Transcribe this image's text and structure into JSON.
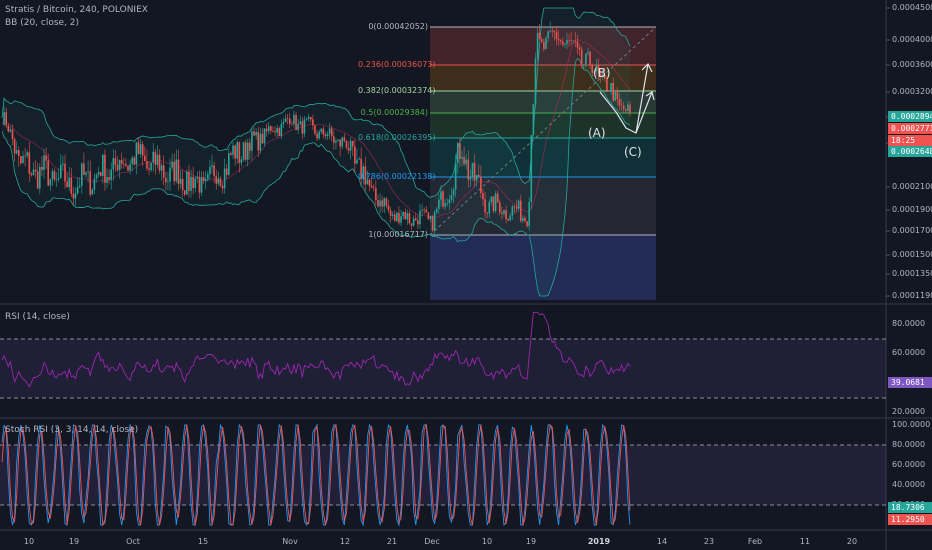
{
  "header": {
    "symbol": "Stratis / Bitcoin, 240, POLONIEX",
    "indicator": "BB (20, close, 2)"
  },
  "panes": {
    "rsi_label": "RSI (14, close)",
    "stoch_label": "Stoch RSI (3, 3, 14, 14, close)"
  },
  "price_axis_labels": [
    "0.00045000",
    "0.00040000",
    "0.00036000",
    "0.00032000",
    "0.00028000",
    "0.00024000",
    "0.00021000",
    "0.00019000",
    "0.00017000",
    "0.00015000",
    "0.00013500",
    "0.00011900"
  ],
  "rsi_axis_labels": [
    "80.0000",
    "60.0000",
    "40.0000",
    "20.0000"
  ],
  "stoch_axis_labels": [
    "100.0000",
    "80.0000",
    "60.0000",
    "40.0000",
    "20.0000"
  ],
  "time_axis_labels": [
    "10",
    "19",
    "Oct",
    "15",
    "Nov",
    "12",
    "21",
    "Dec",
    "10",
    "19",
    "2019",
    "14",
    "23",
    "Feb",
    "11",
    "20"
  ],
  "badges": {
    "price_upper": "0.00028940",
    "price_last": "0.00027710",
    "countdown": "18:25",
    "price_lower": "0.00026480",
    "rsi_value": "39.0681",
    "stoch_k": "18.7306",
    "stoch_d": "11.2950"
  },
  "fibonacci": [
    {
      "ratio": "0",
      "value": "0.00042052",
      "color": "#b2b5be"
    },
    {
      "ratio": "0.236",
      "value": "0.00036073",
      "color": "#ef5350"
    },
    {
      "ratio": "0.382",
      "value": "0.00032374",
      "color": "#a5d6a7"
    },
    {
      "ratio": "0.5",
      "value": "0.00029384",
      "color": "#4caf50"
    },
    {
      "ratio": "0.618",
      "value": "0.00026395",
      "color": "#26a69a"
    },
    {
      "ratio": "0.786",
      "value": "0.00022138",
      "color": "#2196f3"
    },
    {
      "ratio": "1",
      "value": "0.00016717",
      "color": "#b2b5be"
    }
  ],
  "wave_labels": [
    "(B)",
    "(A)",
    "(C)"
  ],
  "colors": {
    "background": "#131722",
    "up": "#26a69a",
    "down": "#ef5350",
    "bb": "#26a69a",
    "rsi": "#9c27b0",
    "stoch_k": "#2196f3",
    "stoch_d": "#ef5350"
  },
  "chart_data": [
    {
      "type": "candlestick",
      "title": "Stratis / Bitcoin, 240, POLONIEX",
      "ylim": [
        0.000119,
        0.00045
      ],
      "x_ticks": [
        "10",
        "19",
        "Oct",
        "15",
        "Nov",
        "12",
        "21",
        "Dec",
        "10",
        "19",
        "2019",
        "14",
        "23",
        "Feb",
        "11",
        "20"
      ],
      "approx_close_path": [
        {
          "x": "Sep 3",
          "y": 0.00028
        },
        {
          "x": "Sep 10",
          "y": 0.000225
        },
        {
          "x": "Sep 19",
          "y": 0.00021
        },
        {
          "x": "Oct 1",
          "y": 0.00023
        },
        {
          "x": "Oct 15",
          "y": 0.00021
        },
        {
          "x": "Oct 28",
          "y": 0.000245
        },
        {
          "x": "Nov 1",
          "y": 0.000275
        },
        {
          "x": "Nov 12",
          "y": 0.00024
        },
        {
          "x": "Nov 21",
          "y": 0.000185
        },
        {
          "x": "Dec 1",
          "y": 0.00018
        },
        {
          "x": "Dec 5",
          "y": 0.000235
        },
        {
          "x": "Dec 10",
          "y": 0.000195
        },
        {
          "x": "Dec 19",
          "y": 0.000185
        },
        {
          "x": "Dec 21",
          "y": 0.00039
        },
        {
          "x": "Dec 28",
          "y": 0.000405
        },
        {
          "x": "Jan 3",
          "y": 0.000345
        },
        {
          "x": "Jan 8",
          "y": 0.00028
        }
      ]
    },
    {
      "type": "line",
      "title": "RSI (14, close)",
      "ylim": [
        15,
        92
      ],
      "reference_lines": [
        70,
        30
      ],
      "last_value": 39.0681
    },
    {
      "type": "line",
      "title": "Stoch RSI (3, 3, 14, 14, close)",
      "ylim": [
        0,
        105
      ],
      "reference_lines": [
        80,
        20
      ],
      "last_values": {
        "k": 18.7306,
        "d": 11.295
      }
    }
  ]
}
